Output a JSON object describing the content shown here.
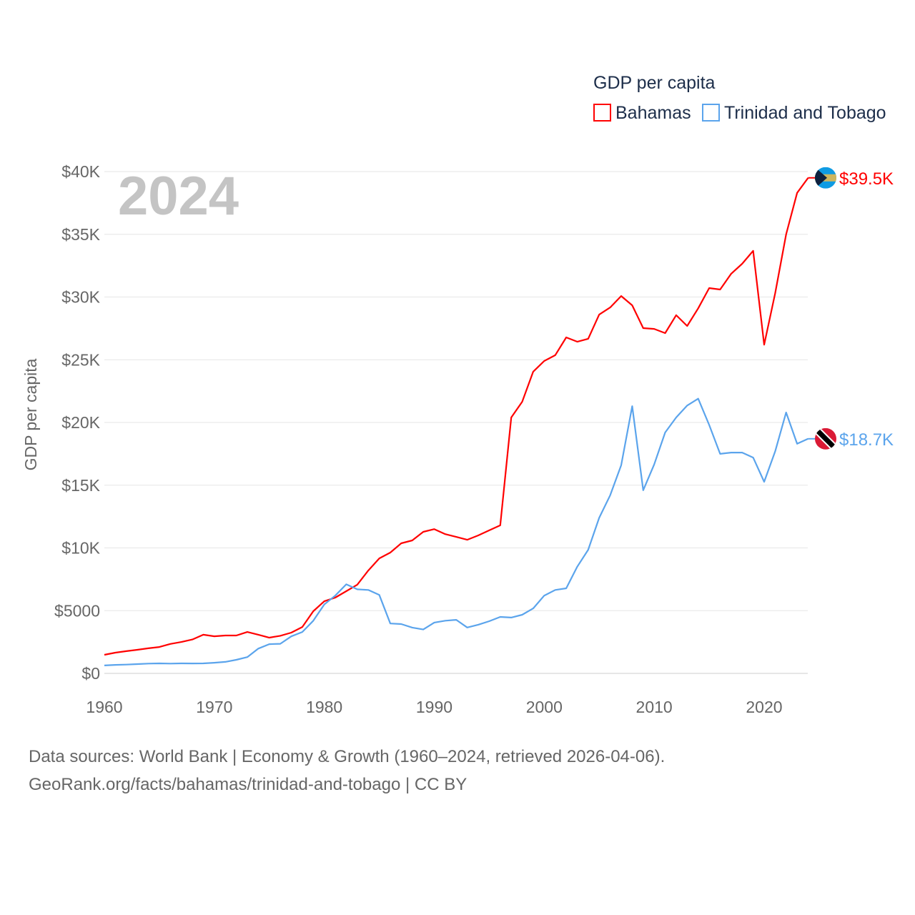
{
  "chart_data": {
    "type": "line",
    "title": "GDP per capita",
    "year_label": "2024",
    "ylabel": "GDP per capita",
    "xlabel": "",
    "xlim": [
      1960,
      2024
    ],
    "ylim": [
      0,
      40000
    ],
    "x_ticks": [
      1960,
      1970,
      1980,
      1990,
      2000,
      2010,
      2020
    ],
    "x_tick_labels": [
      "1960",
      "1970",
      "1980",
      "1990",
      "2000",
      "2010",
      "2020"
    ],
    "y_ticks": [
      0,
      5000,
      10000,
      15000,
      20000,
      25000,
      30000,
      35000,
      40000
    ],
    "y_tick_labels": [
      "$0",
      "$5000",
      "$10K",
      "$15K",
      "$20K",
      "$25K",
      "$30K",
      "$35K",
      "$40K"
    ],
    "grid": true,
    "legend_position": "top-right",
    "x_start": 1960,
    "series": [
      {
        "name": "Bahamas",
        "color": "#ff0000",
        "end_label": "$39.5K",
        "flag": "bahamas-flag",
        "values": [
          1480,
          1650,
          1770,
          1880,
          2000,
          2100,
          2350,
          2500,
          2700,
          3080,
          2960,
          3020,
          3020,
          3300,
          3080,
          2850,
          3000,
          3250,
          3700,
          4960,
          5750,
          6040,
          6550,
          7070,
          8200,
          9170,
          9630,
          10370,
          10600,
          11280,
          11500,
          11100,
          10880,
          10650,
          11000,
          11400,
          11800,
          20400,
          21650,
          24050,
          24900,
          25360,
          26780,
          26440,
          26670,
          28600,
          29170,
          30080,
          29340,
          27520,
          27460,
          27120,
          28550,
          27690,
          29100,
          30710,
          30600,
          31850,
          32650,
          33680,
          26200,
          30300,
          34990,
          38300,
          39500
        ]
      },
      {
        "name": "Trinidad and Tobago",
        "color": "#5ba4ec",
        "end_label": "$18.7K",
        "flag": "trinidad-flag",
        "values": [
          630,
          680,
          700,
          740,
          780,
          800,
          780,
          800,
          790,
          800,
          850,
          920,
          1080,
          1300,
          1980,
          2330,
          2360,
          2950,
          3300,
          4200,
          5500,
          6200,
          7100,
          6700,
          6650,
          6250,
          3980,
          3930,
          3650,
          3500,
          4050,
          4200,
          4270,
          3660,
          3880,
          4160,
          4500,
          4450,
          4670,
          5180,
          6200,
          6650,
          6780,
          8500,
          9850,
          12400,
          14200,
          16600,
          21300,
          14600,
          16650,
          19200,
          20400,
          21350,
          21900,
          19800,
          17500,
          17600,
          17600,
          17200,
          15270,
          17700,
          20800,
          18300,
          18700
        ]
      }
    ]
  },
  "footer": {
    "line1": "Data sources: World Bank | Economy & Growth (1960–2024, retrieved 2026-04-06).",
    "line2": "GeoRank.org/facts/bahamas/trinidad-and-tobago | CC BY"
  }
}
